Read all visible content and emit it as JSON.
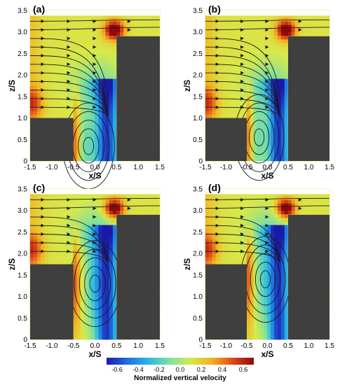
{
  "chart_data": [
    {
      "type": "heatmap",
      "panel_label": "(a)",
      "xlabel": "x/S",
      "ylabel": "z/S",
      "xlim": [
        -1.5,
        1.5
      ],
      "ylim": [
        0,
        3.5
      ],
      "xticks": [
        "-1.5",
        "-1.0",
        "-0.5",
        "0.0",
        "0.5",
        "1.0",
        "1.5"
      ],
      "yticks": [
        "0",
        "0.5",
        "1.0",
        "1.5",
        "2.0",
        "2.5",
        "3.0",
        "3.5"
      ],
      "upstream_building": {
        "x": [
          -1.5,
          -0.5
        ],
        "height": 1.0
      },
      "downstream_building": {
        "x": [
          0.5,
          1.5
        ],
        "height": 2.9
      },
      "vortex_center": [
        -0.2,
        0.35
      ]
    },
    {
      "type": "heatmap",
      "panel_label": "(b)",
      "xlabel": "x/S",
      "ylabel": "z/S",
      "xlim": [
        -1.5,
        1.5
      ],
      "ylim": [
        0,
        3.5
      ],
      "xticks": [
        "-1.5",
        "-1.0",
        "-0.5",
        "0.0",
        "0.5",
        "1.0",
        "1.5"
      ],
      "yticks": [
        "0",
        "0.5",
        "1.0",
        "1.5",
        "2.0",
        "2.5",
        "3.0",
        "3.5"
      ],
      "upstream_building": {
        "x": [
          -1.5,
          -0.5
        ],
        "height": 1.0
      },
      "downstream_building": {
        "x": [
          0.5,
          1.5
        ],
        "height": 2.9
      },
      "vortex_center": [
        -0.25,
        0.55
      ]
    },
    {
      "type": "heatmap",
      "panel_label": "(c)",
      "xlabel": "x/S",
      "ylabel": "z/S",
      "xlim": [
        -1.5,
        1.5
      ],
      "ylim": [
        0,
        3.5
      ],
      "xticks": [
        "-1.5",
        "-1.0",
        "-0.5",
        "0.0",
        "0.5",
        "1.0",
        "1.5"
      ],
      "yticks": [
        "0",
        "0.5",
        "1.0",
        "1.5",
        "2.0",
        "2.5",
        "3.0",
        "3.5"
      ],
      "upstream_building": {
        "x": [
          -1.5,
          -0.5
        ],
        "height": 1.75
      },
      "downstream_building": {
        "x": [
          0.5,
          1.5
        ],
        "height": 2.9
      },
      "vortex_center": [
        -0.05,
        1.3
      ]
    },
    {
      "type": "heatmap",
      "panel_label": "(d)",
      "xlabel": "x/S",
      "ylabel": "z/S",
      "xlim": [
        -1.5,
        1.5
      ],
      "ylim": [
        0,
        3.5
      ],
      "xticks": [
        "-1.5",
        "-1.0",
        "-0.5",
        "0.0",
        "0.5",
        "1.0",
        "1.5"
      ],
      "yticks": [
        "0",
        "0.5",
        "1.0",
        "1.5",
        "2.0",
        "2.5",
        "3.0",
        "3.5"
      ],
      "upstream_building": {
        "x": [
          -1.5,
          -0.5
        ],
        "height": 1.75
      },
      "downstream_building": {
        "x": [
          0.5,
          1.5
        ],
        "height": 2.9
      },
      "vortex_center": [
        -0.1,
        1.4
      ]
    }
  ],
  "colorbar": {
    "title": "Normalized vertical velocity",
    "range": [
      -0.7,
      0.7
    ],
    "ticks": [
      "-0.6",
      "-0.4",
      "-0.2",
      "0.0",
      "0.2",
      "0.4",
      "0.6"
    ],
    "colormap": [
      "#1a1aa8",
      "#1f6fe0",
      "#28b9e8",
      "#7ee0a0",
      "#d8e84a",
      "#f2b020",
      "#e04818",
      "#8a0a0a"
    ]
  },
  "colors": {
    "building": "#3f3f3f",
    "streamline": "#1a1a1a",
    "background_flow": "#9fd848"
  }
}
